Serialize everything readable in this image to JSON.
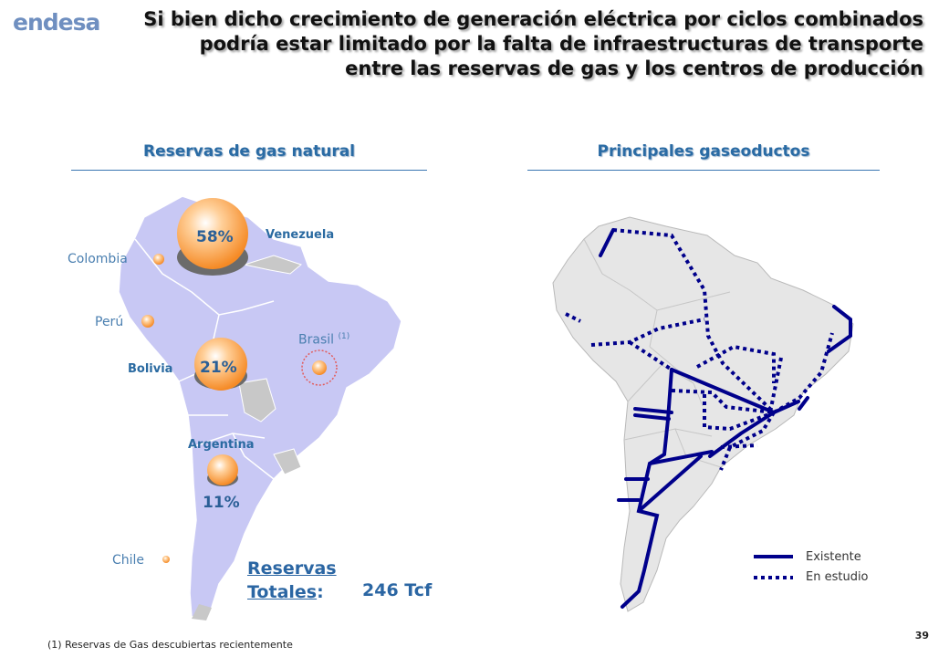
{
  "header": {
    "logo": "endesa",
    "title": "Si bien dicho crecimiento de generación eléctrica por ciclos combinados podría estar limitado por la falta de infraestructuras de transporte entre las reservas de gas y los centros de producción"
  },
  "left_panel": {
    "title": "Reservas de gas natural",
    "countries": {
      "colombia": "Colombia",
      "peru": "Perú",
      "venezuela": "Venezuela",
      "brasil": "Brasil",
      "brasil_note": "(1)",
      "bolivia": "Bolivia",
      "argentina": "Argentina",
      "chile": "Chile"
    },
    "shares": {
      "venezuela": "58%",
      "bolivia": "21%",
      "argentina": "11%"
    },
    "total_label_1": "Reservas",
    "total_label_2": "Totales",
    "total_colon": ":",
    "total_value": "246 Tcf"
  },
  "right_panel": {
    "title": "Principales gaseoductos",
    "legend": {
      "existing": "Existente",
      "study": "En estudio"
    }
  },
  "colors": {
    "map_left": "#c8c8f4",
    "map_right": "#e6e6e6",
    "pipeline": "#00008b",
    "title_blue": "#2a6ba4",
    "bubble": "#f7a046"
  },
  "footnote": "(1) Reservas de Gas descubiertas recientemente",
  "page_number": "39"
}
